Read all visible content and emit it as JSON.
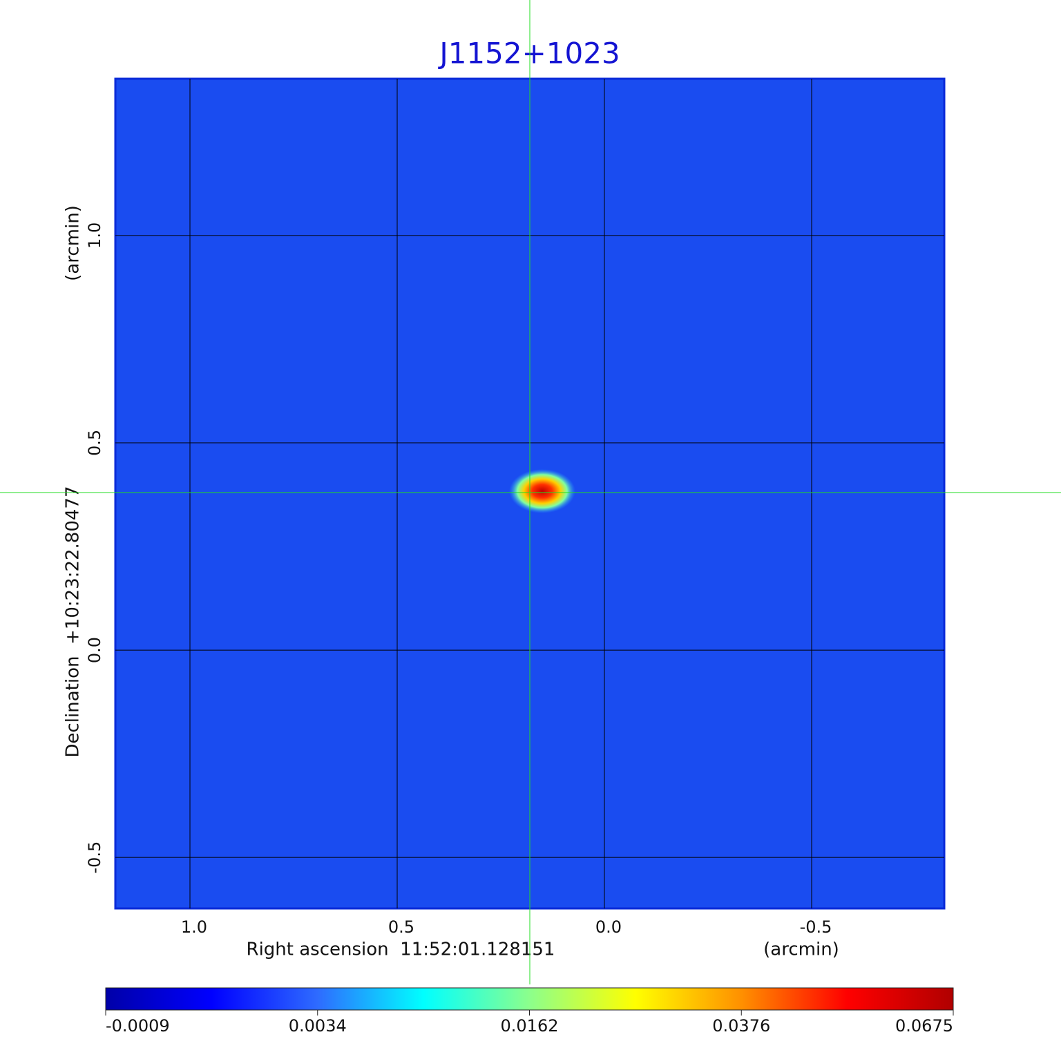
{
  "chart_data": {
    "type": "image",
    "title": "J1152+1023",
    "title_color": "#1414d2",
    "x_label": "Right ascension  11:52:01.128151",
    "x_unit": "(arcmin)",
    "y_label": "Declination  +10:23:22.80477",
    "y_unit": "(arcmin)",
    "xlim": [
      1.18,
      -0.82
    ],
    "ylim": [
      -0.623,
      1.378
    ],
    "xticks": [
      {
        "value": 1,
        "label": "1.0"
      },
      0.5,
      {
        "value": 0,
        "label": "0.0"
      },
      -0.5
    ],
    "yticks": [
      -0.5,
      {
        "value": 0,
        "label": "0.0"
      },
      0.5,
      {
        "value": 1,
        "label": "1.0"
      }
    ],
    "grid": true,
    "crosshair": {
      "x": 0.18,
      "y": 0.38,
      "color": "#22dd22"
    },
    "colorbar": {
      "ticks": [
        -0.0009,
        0.0034,
        0.0162,
        0.0376,
        0.0675
      ],
      "colors": [
        "#0000a8",
        "#0000ff",
        "#2e6bff",
        "#00ffff",
        "#8cff8c",
        "#ffff00",
        "#ff9000",
        "#ff0000",
        "#b00000"
      ]
    }
  }
}
